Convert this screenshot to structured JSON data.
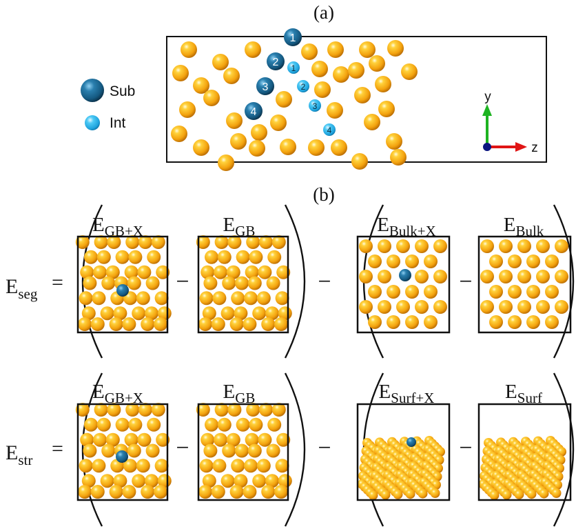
{
  "panel_a": {
    "label": "(a)",
    "legend": [
      {
        "key": "sub",
        "label": "Sub"
      },
      {
        "key": "int",
        "label": "Int"
      }
    ],
    "substitutional_sites": [
      "1",
      "2",
      "3",
      "4"
    ],
    "interstitial_sites": [
      "1",
      "2",
      "3",
      "4"
    ],
    "axes": {
      "y": "y",
      "z": "z"
    }
  },
  "panel_b": {
    "label": "(b)",
    "rows": [
      {
        "lhs": {
          "base": "E",
          "sub": "seg"
        },
        "equals": "=",
        "minus": "−",
        "terms": [
          {
            "base": "E",
            "sub": "GB+X"
          },
          {
            "base": "E",
            "sub": "GB"
          },
          {
            "base": "E",
            "sub": "Bulk+X"
          },
          {
            "base": "E",
            "sub": "Bulk"
          }
        ]
      },
      {
        "lhs": {
          "base": "E",
          "sub": "str"
        },
        "equals": "=",
        "minus": "−",
        "terms": [
          {
            "base": "E",
            "sub": "GB+X"
          },
          {
            "base": "E",
            "sub": "GB"
          },
          {
            "base": "E",
            "sub": "Surf+X"
          },
          {
            "base": "E",
            "sub": "Surf"
          }
        ]
      }
    ]
  },
  "colors": {
    "host_atom": "#F2A50F",
    "solute_sub": "#175E86",
    "solute_int": "#2BB6EE",
    "axis_y": "#1DB321",
    "axis_z": "#E01515",
    "axis_x": "#0A1580"
  }
}
